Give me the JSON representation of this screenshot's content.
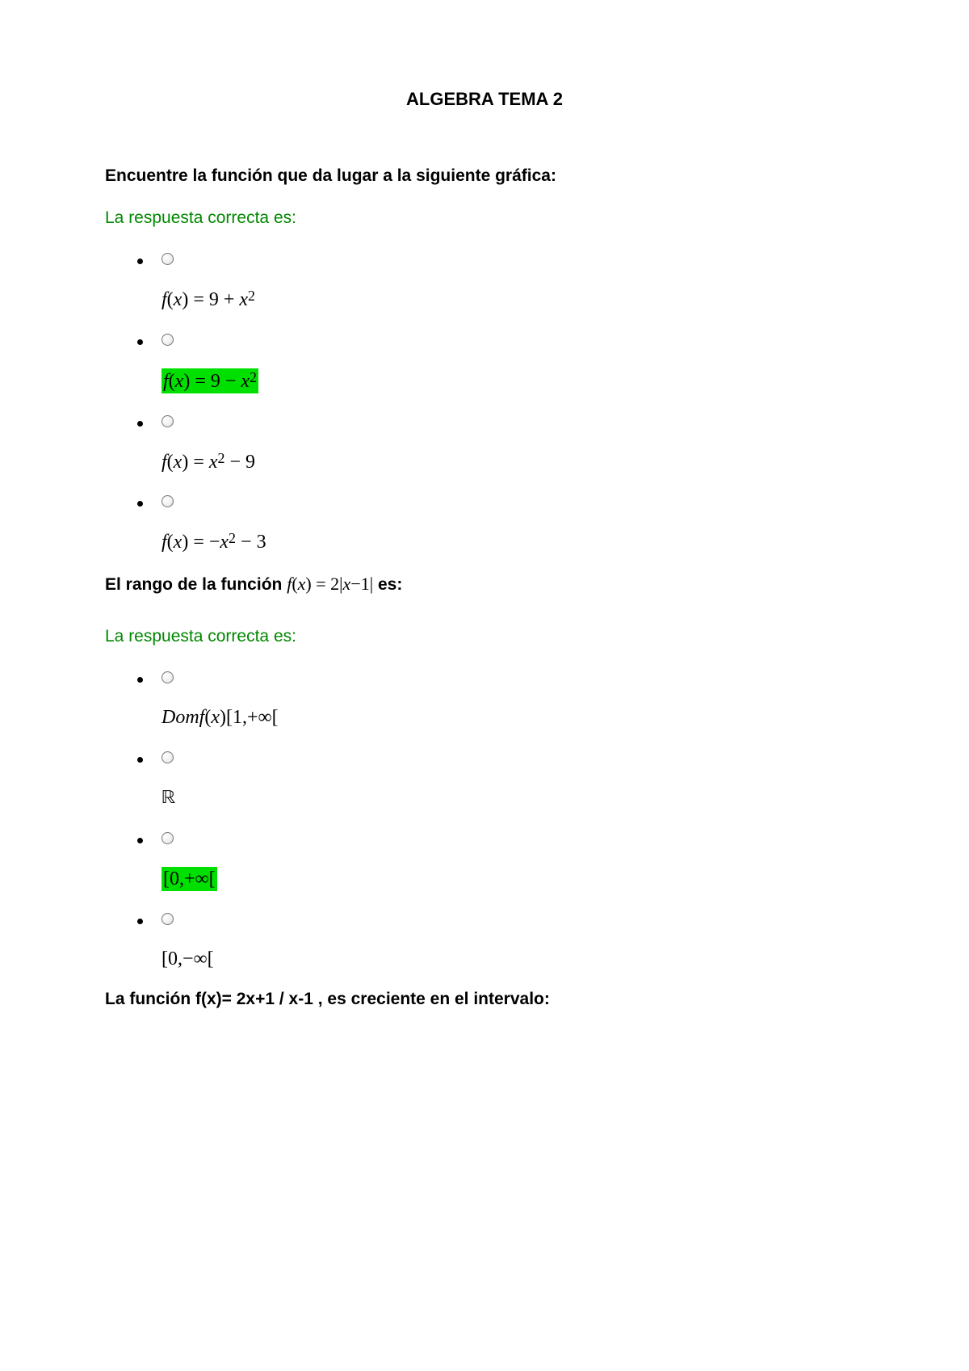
{
  "title": "ALGEBRA TEMA 2",
  "answer_label": "La respuesta correcta es:",
  "highlight_color": "#00e000",
  "answer_text_color": "#008800",
  "q1": {
    "prompt": "Encuentre la función que da lugar a la siguiente gráfica:",
    "options": [
      {
        "html": "<span class=\"fx\">f</span>(<span class=\"fx\">x</span>) = 9 + <span class=\"fx\">x</span><sup>2</sup>",
        "highlighted": false
      },
      {
        "html": "<span class=\"fx\">f</span>(<span class=\"fx\">x</span>) = 9 − <span class=\"fx\">x</span><sup>2</sup>",
        "highlighted": true
      },
      {
        "html": "<span class=\"fx\">f</span>(<span class=\"fx\">x</span>) = <span class=\"fx\">x</span><sup>2</sup> − 9",
        "highlighted": false
      },
      {
        "html": "<span class=\"fx\">f</span>(<span class=\"fx\">x</span>) = −<span class=\"fx\">x</span><sup>2</sup> − 3",
        "highlighted": false
      }
    ]
  },
  "q2": {
    "prompt_pre": "El rango de la función ",
    "prompt_formula": "<span class=\"fx\">f</span>(<span class=\"fx\">x</span>) = 2|<span class=\"fx\">x</span>−1|",
    "prompt_post": " es:",
    "options": [
      {
        "html": "<span class=\"fx\">Domf</span>(<span class=\"fx\">x</span>)[1,+∞[",
        "highlighted": false
      },
      {
        "html": "<span class=\"bbR\">ℝ</span>",
        "highlighted": false
      },
      {
        "html": "[0,+∞[",
        "highlighted": true
      },
      {
        "html": "[0,−∞[",
        "highlighted": false
      }
    ]
  },
  "q3": {
    "prompt": "La función f(x)= 2x+1 / x-1 , es creciente en el intervalo:"
  }
}
